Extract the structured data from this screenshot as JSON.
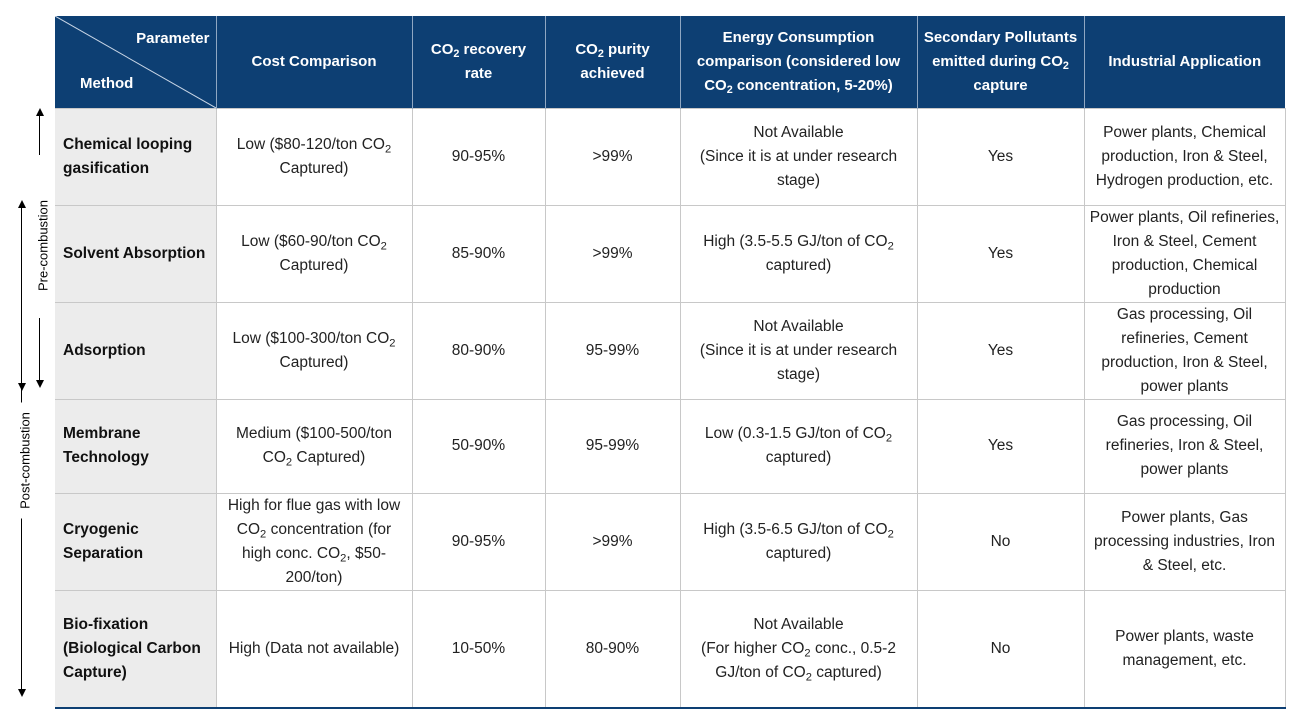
{
  "side_labels": {
    "pre_combustion": "Pre-combustion",
    "post_combustion": "Post-combustion"
  },
  "header": {
    "parameter": "Parameter",
    "method": "Method",
    "cost": "Cost Comparison",
    "recovery": [
      "CO",
      "2",
      " recovery rate"
    ],
    "purity": [
      "CO",
      "2",
      " purity achieved"
    ],
    "energy": [
      "Energy Consumption comparison (considered low ",
      "CO",
      "2",
      " concentration, 5-20%)"
    ],
    "pollutants": [
      "Secondary Pollutants emitted during CO",
      "2",
      " capture"
    ],
    "application": "Industrial Application"
  },
  "rows": [
    {
      "method": "Chemical looping gasification",
      "cost": [
        "Low ($80-120/ton CO",
        "2",
        " Captured)"
      ],
      "recovery": "90-95%",
      "purity": ">99%",
      "energy": [
        "Not Available",
        "(Since it is at under research stage)"
      ],
      "pollutants": "Yes",
      "application": "Power plants, Chemical production, Iron & Steel, Hydrogen production, etc."
    },
    {
      "method": "Solvent Absorption",
      "cost": [
        "Low ($60-90/ton CO",
        "2",
        " Captured)"
      ],
      "recovery": "85-90%",
      "purity": ">99%",
      "energy": [
        "High (3.5-5.5 GJ/ton of CO",
        "2",
        " captured)"
      ],
      "pollutants": "Yes",
      "application": "Power plants, Oil refineries, Iron & Steel, Cement production, Chemical production"
    },
    {
      "method": "Adsorption",
      "cost": [
        "Low ($100-300/ton CO",
        "2",
        " Captured)"
      ],
      "recovery": "80-90%",
      "purity": "95-99%",
      "energy": [
        "Not Available",
        "(Since it is at under research stage)"
      ],
      "pollutants": "Yes",
      "application": "Gas processing, Oil refineries, Cement production, Iron & Steel, power plants"
    },
    {
      "method": "Membrane Technology",
      "cost": [
        "Medium ($100-500/ton CO",
        "2",
        " Captured)"
      ],
      "recovery": "50-90%",
      "purity": "95-99%",
      "energy": [
        "Low (0.3-1.5 GJ/ton of CO",
        "2",
        " captured)"
      ],
      "pollutants": "Yes",
      "application": "Gas processing, Oil refineries, Iron & Steel, power plants"
    },
    {
      "method": "Cryogenic Separation",
      "cost": [
        "High  for flue gas with low CO",
        "2",
        " concentration (for high conc. CO",
        "2",
        ", $50-200/ton)"
      ],
      "recovery": "90-95%",
      "purity": ">99%",
      "energy": [
        "High (3.5-6.5 GJ/ton of CO",
        "2",
        " captured)"
      ],
      "pollutants": "No",
      "application": "Power plants, Gas processing industries, Iron & Steel, etc."
    },
    {
      "method": "Bio-fixation (Biological Carbon Capture)",
      "cost": [
        "High (Data not available)"
      ],
      "recovery": "10-50%",
      "purity": "80-90%",
      "energy": [
        "Not Available",
        "(For higher CO",
        "2",
        " conc., 0.5-2 GJ/ton of CO",
        "2",
        " captured)"
      ],
      "pollutants": "No",
      "application": "Power plants, waste management, etc."
    }
  ]
}
